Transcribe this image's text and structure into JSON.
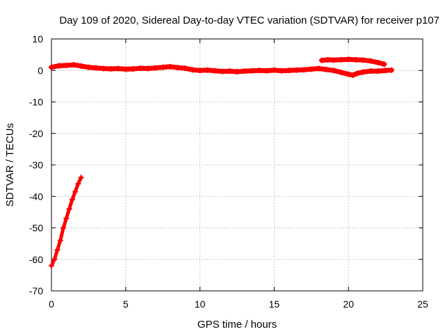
{
  "chart_data": {
    "type": "scatter",
    "title": "Day 109 of 2020, Sidereal Day-to-day VTEC variation (SDTVAR) for receiver p107",
    "xlabel": "GPS time / hours",
    "ylabel": "SDTVAR / TECUs",
    "xlim": [
      0,
      25
    ],
    "ylim": [
      -70,
      10
    ],
    "x_ticks": [
      0,
      5,
      10,
      15,
      20,
      25
    ],
    "y_ticks": [
      10,
      0,
      -10,
      -20,
      -30,
      -40,
      -50,
      -60,
      -70
    ],
    "grid": true,
    "legend": "none",
    "marker": "plus",
    "color": "#ff0000",
    "series": [
      {
        "values": [
          [
            0.0,
            -62
          ],
          [
            0.2,
            -60
          ],
          [
            0.4,
            -57
          ],
          [
            0.6,
            -54
          ],
          [
            0.8,
            -50
          ],
          [
            1.0,
            -47
          ],
          [
            1.2,
            -44
          ],
          [
            1.4,
            -41
          ],
          [
            1.6,
            -38.5
          ],
          [
            1.8,
            -36
          ],
          [
            2.0,
            -34
          ]
        ]
      },
      {
        "values": [
          [
            0.0,
            1.0
          ],
          [
            0.5,
            1.5
          ],
          [
            1.0,
            1.6
          ],
          [
            1.5,
            1.8
          ],
          [
            2.0,
            1.4
          ],
          [
            2.5,
            1.0
          ],
          [
            3.0,
            0.8
          ],
          [
            3.5,
            0.6
          ],
          [
            4.0,
            0.5
          ],
          [
            4.5,
            0.6
          ],
          [
            5.0,
            0.4
          ],
          [
            5.5,
            0.5
          ],
          [
            6.0,
            0.7
          ],
          [
            6.5,
            0.6
          ],
          [
            7.0,
            0.8
          ],
          [
            7.5,
            1.0
          ],
          [
            8.0,
            1.2
          ],
          [
            8.5,
            0.9
          ],
          [
            9.0,
            0.7
          ],
          [
            9.5,
            0.2
          ],
          [
            10.0,
            0.0
          ],
          [
            10.5,
            0.1
          ],
          [
            11.0,
            -0.1
          ],
          [
            11.5,
            -0.3
          ],
          [
            12.0,
            -0.2
          ],
          [
            12.5,
            -0.4
          ],
          [
            13.0,
            -0.2
          ],
          [
            13.5,
            -0.1
          ],
          [
            14.0,
            0.0
          ],
          [
            14.5,
            -0.1
          ],
          [
            15.0,
            0.1
          ],
          [
            15.5,
            -0.1
          ],
          [
            16.0,
            0.0
          ],
          [
            16.5,
            0.1
          ],
          [
            17.0,
            0.2
          ],
          [
            17.5,
            0.4
          ],
          [
            18.0,
            0.6
          ],
          [
            18.5,
            0.3
          ],
          [
            19.0,
            0.0
          ],
          [
            19.5,
            -0.6
          ],
          [
            20.0,
            -1.2
          ],
          [
            20.3,
            -1.5
          ],
          [
            20.6,
            -0.9
          ],
          [
            21.0,
            -0.5
          ],
          [
            21.5,
            -0.2
          ],
          [
            22.0,
            -0.2
          ],
          [
            22.5,
            0.0
          ],
          [
            22.9,
            0.1
          ]
        ]
      },
      {
        "values": [
          [
            18.2,
            3.2
          ],
          [
            18.6,
            3.4
          ],
          [
            19.0,
            3.3
          ],
          [
            19.5,
            3.4
          ],
          [
            20.0,
            3.5
          ],
          [
            20.5,
            3.4
          ],
          [
            21.0,
            3.3
          ],
          [
            21.5,
            3.0
          ],
          [
            22.0,
            2.5
          ],
          [
            22.4,
            2.0
          ]
        ]
      }
    ]
  }
}
